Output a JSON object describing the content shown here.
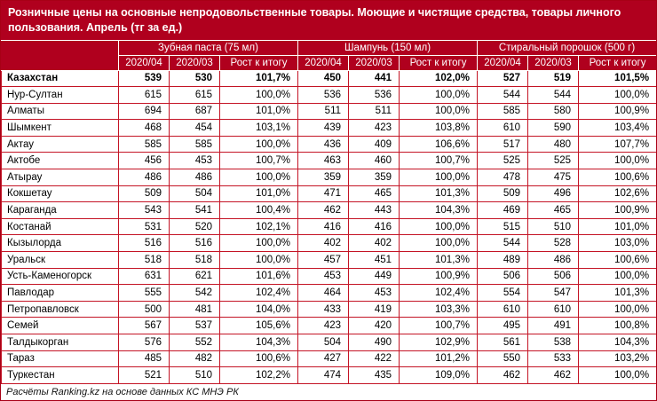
{
  "title": "Розничные цены на основные непродовольственные товары. Моющие и чистящие средства, товары личного пользования. Апрель (тг за ед.)",
  "footer": "Расчёты Ranking.kz на основе данных КС МНЭ РК",
  "colors": {
    "header_bg": "#b0001e",
    "border": "#c41425",
    "header_text": "#ffffff",
    "body_text": "#000000"
  },
  "chart_data": {
    "type": "table",
    "title": "Розничные цены на основные непродовольственные товары. Моющие и чистящие средства, товары личного пользования. Апрель (тг за ед.)",
    "column_groups": [
      "Зубная паста (75 мл)",
      "Шампунь (150 мл)",
      "Стиральный порошок (500 г)"
    ],
    "sub_columns": [
      "2020/04",
      "2020/03",
      "Рост к итогу"
    ],
    "rows": [
      {
        "region": "Казахстан",
        "bold": true,
        "values": [
          "539",
          "530",
          "101,7%",
          "450",
          "441",
          "102,0%",
          "527",
          "519",
          "101,5%"
        ]
      },
      {
        "region": "Нур-Султан",
        "bold": false,
        "values": [
          "615",
          "615",
          "100,0%",
          "536",
          "536",
          "100,0%",
          "544",
          "544",
          "100,0%"
        ]
      },
      {
        "region": "Алматы",
        "bold": false,
        "values": [
          "694",
          "687",
          "101,0%",
          "511",
          "511",
          "100,0%",
          "585",
          "580",
          "100,9%"
        ]
      },
      {
        "region": "Шымкент",
        "bold": false,
        "values": [
          "468",
          "454",
          "103,1%",
          "439",
          "423",
          "103,8%",
          "610",
          "590",
          "103,4%"
        ]
      },
      {
        "region": "Актау",
        "bold": false,
        "values": [
          "585",
          "585",
          "100,0%",
          "436",
          "409",
          "106,6%",
          "517",
          "480",
          "107,7%"
        ]
      },
      {
        "region": "Актобе",
        "bold": false,
        "values": [
          "456",
          "453",
          "100,7%",
          "463",
          "460",
          "100,7%",
          "525",
          "525",
          "100,0%"
        ]
      },
      {
        "region": "Атырау",
        "bold": false,
        "values": [
          "486",
          "486",
          "100,0%",
          "359",
          "359",
          "100,0%",
          "478",
          "475",
          "100,6%"
        ]
      },
      {
        "region": "Кокшетау",
        "bold": false,
        "values": [
          "509",
          "504",
          "101,0%",
          "471",
          "465",
          "101,3%",
          "509",
          "496",
          "102,6%"
        ]
      },
      {
        "region": "Караганда",
        "bold": false,
        "values": [
          "543",
          "541",
          "100,4%",
          "462",
          "443",
          "104,3%",
          "469",
          "465",
          "100,9%"
        ]
      },
      {
        "region": "Костанай",
        "bold": false,
        "values": [
          "531",
          "520",
          "102,1%",
          "416",
          "416",
          "100,0%",
          "515",
          "510",
          "101,0%"
        ]
      },
      {
        "region": "Кызылорда",
        "bold": false,
        "values": [
          "516",
          "516",
          "100,0%",
          "402",
          "402",
          "100,0%",
          "544",
          "528",
          "103,0%"
        ]
      },
      {
        "region": "Уральск",
        "bold": false,
        "values": [
          "518",
          "518",
          "100,0%",
          "457",
          "451",
          "101,3%",
          "489",
          "486",
          "100,6%"
        ]
      },
      {
        "region": "Усть-Каменогорск",
        "bold": false,
        "values": [
          "631",
          "621",
          "101,6%",
          "453",
          "449",
          "100,9%",
          "506",
          "506",
          "100,0%"
        ]
      },
      {
        "region": "Павлодар",
        "bold": false,
        "values": [
          "555",
          "542",
          "102,4%",
          "464",
          "453",
          "102,4%",
          "554",
          "547",
          "101,3%"
        ]
      },
      {
        "region": "Петропавловск",
        "bold": false,
        "values": [
          "500",
          "481",
          "104,0%",
          "433",
          "419",
          "103,3%",
          "610",
          "610",
          "100,0%"
        ]
      },
      {
        "region": "Семей",
        "bold": false,
        "values": [
          "567",
          "537",
          "105,6%",
          "423",
          "420",
          "100,7%",
          "495",
          "491",
          "100,8%"
        ]
      },
      {
        "region": "Талдыкорган",
        "bold": false,
        "values": [
          "576",
          "552",
          "104,3%",
          "504",
          "490",
          "102,9%",
          "561",
          "538",
          "104,3%"
        ]
      },
      {
        "region": "Тараз",
        "bold": false,
        "values": [
          "485",
          "482",
          "100,6%",
          "427",
          "422",
          "101,2%",
          "550",
          "533",
          "103,2%"
        ]
      },
      {
        "region": "Туркестан",
        "bold": false,
        "values": [
          "521",
          "510",
          "102,2%",
          "474",
          "435",
          "109,0%",
          "462",
          "462",
          "100,0%"
        ]
      }
    ],
    "source": "Расчёты Ranking.kz на основе данных КС МНЭ РК"
  }
}
